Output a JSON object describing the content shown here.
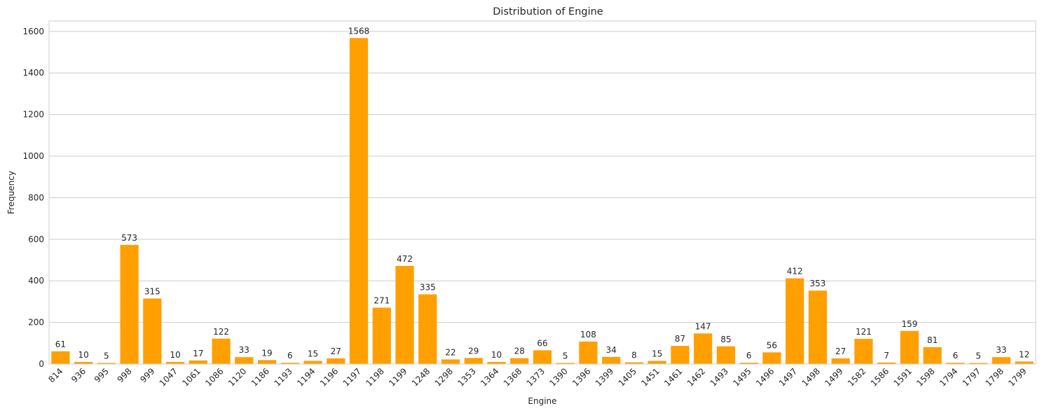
{
  "chart_data": {
    "type": "bar",
    "title": "Distribution of Engine",
    "xlabel": "Engine",
    "ylabel": "Frequency",
    "ylim": [
      0,
      1650
    ],
    "yticks": [
      0,
      200,
      400,
      600,
      800,
      1000,
      1200,
      1400,
      1600
    ],
    "grid": "horizontal",
    "bar_color": "#ff9f00",
    "categories": [
      "814",
      "936",
      "995",
      "998",
      "999",
      "1047",
      "1061",
      "1086",
      "1120",
      "1186",
      "1193",
      "1194",
      "1196",
      "1197",
      "1198",
      "1199",
      "1248",
      "1298",
      "1353",
      "1364",
      "1368",
      "1373",
      "1390",
      "1396",
      "1399",
      "1405",
      "1451",
      "1461",
      "1462",
      "1493",
      "1495",
      "1496",
      "1497",
      "1498",
      "1499",
      "1582",
      "1586",
      "1591",
      "1598",
      "1794",
      "1797",
      "1798",
      "1799"
    ],
    "values": [
      61,
      10,
      5,
      573,
      315,
      10,
      17,
      122,
      33,
      19,
      6,
      15,
      27,
      1568,
      271,
      472,
      335,
      22,
      29,
      10,
      28,
      66,
      5,
      108,
      34,
      8,
      15,
      87,
      147,
      85,
      6,
      56,
      412,
      353,
      27,
      121,
      7,
      159,
      81,
      6,
      5,
      33,
      12
    ]
  }
}
